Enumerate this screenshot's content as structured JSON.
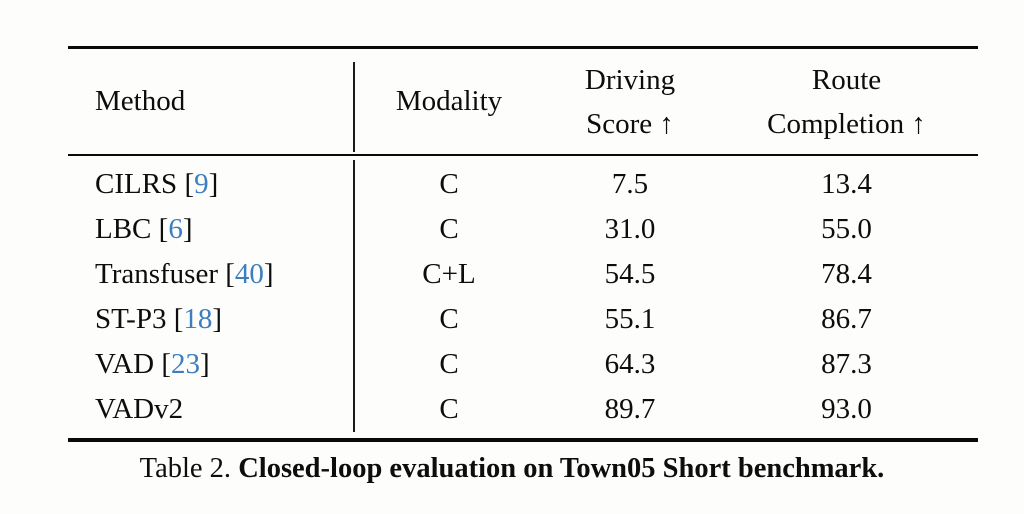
{
  "page": {
    "background": "#fdfdfb"
  },
  "colors": {
    "citation_blue": "#3d7ebf",
    "text": "#0d0d0d",
    "rule": "#0a0a0a"
  },
  "table": {
    "headers": {
      "method": "Method",
      "modality": "Modality",
      "driving_line1": "Driving",
      "driving_line2": "Score ↑",
      "route_line1": "Route",
      "route_line2": "Completion ↑"
    },
    "cite_format": {
      "open": " [",
      "close": "]"
    },
    "rows": [
      {
        "method": "CILRS",
        "cite": "9",
        "modality": "C",
        "driving_score": "7.5",
        "route_completion": "13.4"
      },
      {
        "method": "LBC",
        "cite": "6",
        "modality": "C",
        "driving_score": "31.0",
        "route_completion": "55.0"
      },
      {
        "method": "Transfuser",
        "cite": "40",
        "modality": "C+L",
        "driving_score": "54.5",
        "route_completion": "78.4"
      },
      {
        "method": "ST-P3",
        "cite": "18",
        "modality": "C",
        "driving_score": "55.1",
        "route_completion": "86.7"
      },
      {
        "method": "VAD",
        "cite": "23",
        "modality": "C",
        "driving_score": "64.3",
        "route_completion": "87.3"
      },
      {
        "method": "VADv2",
        "cite": null,
        "modality": "C",
        "driving_score": "89.7",
        "route_completion": "93.0"
      }
    ]
  },
  "caption": {
    "label": "Table 2.",
    "title": "Closed-loop evaluation on Town05 Short benchmark."
  }
}
